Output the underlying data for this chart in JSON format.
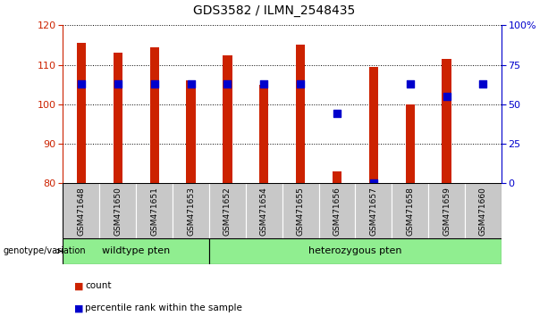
{
  "title": "GDS3582 / ILMN_2548435",
  "samples": [
    "GSM471648",
    "GSM471650",
    "GSM471651",
    "GSM471653",
    "GSM471652",
    "GSM471654",
    "GSM471655",
    "GSM471656",
    "GSM471657",
    "GSM471658",
    "GSM471659",
    "GSM471660"
  ],
  "count_values": [
    115.5,
    113.0,
    114.5,
    106.0,
    112.5,
    105.0,
    115.0,
    83.0,
    109.5,
    100.0,
    111.5,
    80.0
  ],
  "percentile_values": [
    63,
    63,
    63,
    63,
    63,
    63,
    63,
    44,
    0,
    63,
    55,
    63
  ],
  "ylim_left": [
    80,
    120
  ],
  "ylim_right": [
    0,
    100
  ],
  "yticks_left": [
    80,
    90,
    100,
    110,
    120
  ],
  "yticks_right": [
    0,
    25,
    50,
    75,
    100
  ],
  "ytick_labels_right": [
    "0",
    "25",
    "50",
    "75",
    "100%"
  ],
  "bar_color": "#CC2200",
  "dot_color": "#0000CC",
  "grid_color": "#888888",
  "wildtype_label": "wildtype pten",
  "heterozygous_label": "heterozygous pten",
  "genotype_label": "genotype/variation",
  "legend_count_label": "count",
  "legend_percentile_label": "percentile rank within the sample",
  "bar_width": 0.25,
  "dot_size": 28,
  "background_plot": "#FFFFFF",
  "bar_bottom": 80,
  "percentile_marker": "s",
  "n_wildtype": 4,
  "n_heterozygous": 8
}
